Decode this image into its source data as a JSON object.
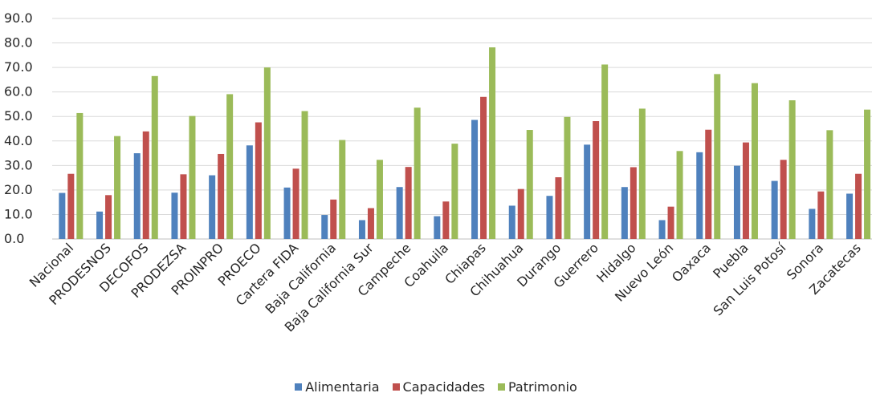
{
  "chart_data": {
    "type": "bar",
    "categories": [
      "Nacional",
      "PRODESNOS",
      "DECOFOS",
      "PRODEZSA",
      "PROINPRO",
      "PROECO",
      "Cartera FIDA",
      "Baja California",
      "Baja California Sur",
      "Campeche",
      "Coahuila",
      "Chiapas",
      "Chihuahua",
      "Durango",
      "Guerrero",
      "Hidalgo",
      "Nuevo León",
      "Oaxaca",
      "Puebla",
      "San Luis Potosí",
      "Sonora",
      "Zacatecas"
    ],
    "series": [
      {
        "name": "Alimentaria",
        "color": "#4F81BD",
        "values": [
          18.8,
          11.2,
          35.0,
          18.9,
          26.0,
          38.2,
          21.0,
          9.8,
          7.7,
          21.2,
          9.3,
          48.6,
          13.6,
          17.6,
          38.5,
          21.2,
          7.7,
          35.4,
          29.9,
          23.7,
          12.3,
          18.5
        ]
      },
      {
        "name": "Capacidades",
        "color": "#C0504D",
        "values": [
          26.6,
          17.9,
          43.9,
          26.4,
          34.7,
          47.6,
          28.7,
          16.1,
          12.6,
          29.4,
          15.3,
          58.0,
          20.4,
          25.2,
          48.1,
          29.3,
          13.2,
          44.6,
          39.4,
          32.3,
          19.4,
          26.6
        ]
      },
      {
        "name": "Patrimonio",
        "color": "#9BBB59",
        "values": [
          51.4,
          42.0,
          66.5,
          50.2,
          59.1,
          70.0,
          52.2,
          40.4,
          32.3,
          53.6,
          38.9,
          78.2,
          44.5,
          49.8,
          71.2,
          53.2,
          35.9,
          67.3,
          63.6,
          56.6,
          44.4,
          52.8
        ]
      }
    ],
    "yticks": [
      "0.0",
      "10.0",
      "20.0",
      "30.0",
      "40.0",
      "50.0",
      "60.0",
      "70.0",
      "80.0",
      "90.0"
    ],
    "ylim": [
      0,
      90
    ],
    "title": "",
    "xlabel": "",
    "ylabel": "",
    "grid": true,
    "legend_position": "bottom"
  },
  "colors": {
    "gridline": "#D9D9D9",
    "axis": "#BFBFBF",
    "text": "#262626"
  }
}
